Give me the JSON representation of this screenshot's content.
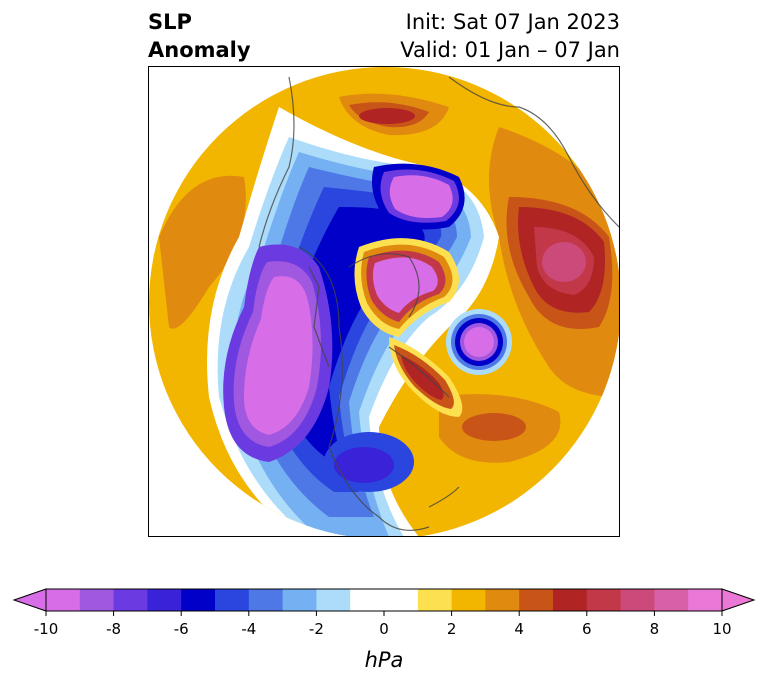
{
  "title": {
    "left_line1": "SLP",
    "left_line2": "Anomaly",
    "right_line1": "Init: Sat 07 Jan 2023",
    "right_line2": "Valid: 01 Jan – 07 Jan"
  },
  "colorbar": {
    "units": "hPa",
    "ticks": [
      "-10",
      "-8",
      "-6",
      "-4",
      "-2",
      "0",
      "2",
      "4",
      "6",
      "8",
      "10"
    ],
    "colors": [
      "#d76ee8",
      "#a058e0",
      "#6b3ae0",
      "#3a22d8",
      "#0000c8",
      "#2a46de",
      "#4e78e6",
      "#74b0f2",
      "#acdcfa",
      "#ffffff",
      "#ffffff",
      "#fde050",
      "#f2b500",
      "#e08a10",
      "#c85418",
      "#b02424",
      "#c23848",
      "#cc4a7a",
      "#d860a8",
      "#ea78d6"
    ],
    "extend_low_color": "#d76ee8",
    "extend_high_color": "#ea78d6"
  },
  "map": {
    "projection": "north-polar-stereographic",
    "variable": "sea-level-pressure-anomaly"
  }
}
